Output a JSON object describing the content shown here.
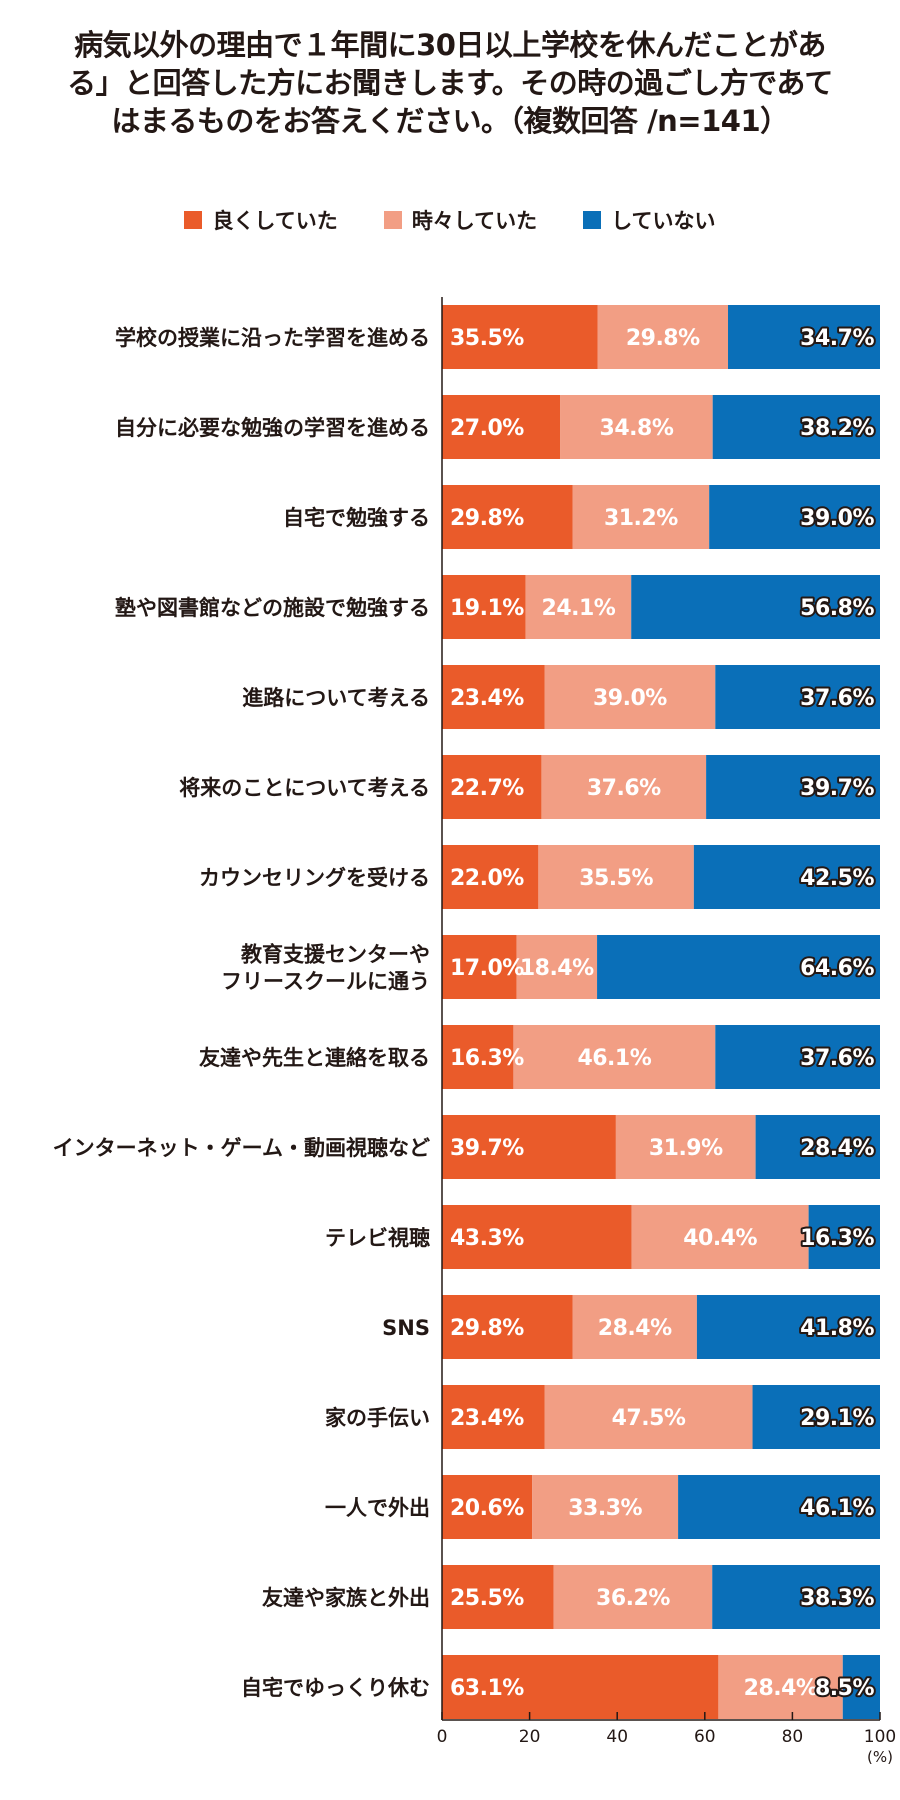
{
  "title": {
    "lines": [
      "病気以外の理由で１年間に30日以上学校を休んだことがあ",
      "る」と回答した方にお聞きします。その時の過ごし方であて",
      "はまるものをお答えください。（複数回答 /n=141）"
    ]
  },
  "legend": [
    {
      "label": "良くしていた",
      "color": "#ea5b2a"
    },
    {
      "label": "時々していた",
      "color": "#f29e84"
    },
    {
      "label": "していない",
      "color": "#0a6fb8"
    }
  ],
  "chart_data": {
    "type": "bar",
    "orientation": "horizontal",
    "stacked": true,
    "categories": [
      [
        "学校の授業に沿った学習を進める"
      ],
      [
        "自分に必要な勉強の学習を進める"
      ],
      [
        "自宅で勉強する"
      ],
      [
        "塾や図書館などの施設で勉強する"
      ],
      [
        "進路について考える"
      ],
      [
        "将来のことについて考える"
      ],
      [
        "カウンセリングを受ける"
      ],
      [
        "教育支援センターや",
        "フリースクールに通う"
      ],
      [
        "友達や先生と連絡を取る"
      ],
      [
        "インターネット・ゲーム・動画視聴など"
      ],
      [
        "テレビ視聴"
      ],
      [
        "SNS"
      ],
      [
        "家の手伝い"
      ],
      [
        "一人で外出"
      ],
      [
        "友達や家族と外出"
      ],
      [
        "自宅でゆっくり休む"
      ]
    ],
    "series": [
      {
        "name": "良くしていた",
        "color": "#ea5b2a",
        "values": [
          35.5,
          27.0,
          29.8,
          19.1,
          23.4,
          22.7,
          22.0,
          17.0,
          16.3,
          39.7,
          43.3,
          29.8,
          23.4,
          20.6,
          25.5,
          63.1
        ]
      },
      {
        "name": "時々していた",
        "color": "#f29e84",
        "values": [
          29.8,
          34.8,
          31.2,
          24.1,
          39.0,
          37.6,
          35.5,
          18.4,
          46.1,
          31.9,
          40.4,
          28.4,
          47.5,
          33.3,
          36.2,
          28.4
        ]
      },
      {
        "name": "していない",
        "color": "#0a6fb8",
        "values": [
          34.7,
          38.2,
          39.0,
          56.8,
          37.6,
          39.7,
          42.5,
          64.6,
          37.6,
          28.4,
          16.3,
          41.8,
          29.1,
          46.1,
          38.3,
          8.5
        ]
      }
    ],
    "value_labels": [
      [
        "35.5%",
        "29.8%",
        "34.7%"
      ],
      [
        "27.0%",
        "34.8%",
        "38.2%"
      ],
      [
        "29.8%",
        "31.2%",
        "39.0%"
      ],
      [
        "19.1%",
        "24.1%",
        "56.8%"
      ],
      [
        "23.4%",
        "39.0%",
        "37.6%"
      ],
      [
        "22.7%",
        "37.6%",
        "39.7%"
      ],
      [
        "22.0%",
        "35.5%",
        "42.5%"
      ],
      [
        "17.0%",
        "18.4%",
        "64.6%"
      ],
      [
        "16.3%",
        "46.1%",
        "37.6%"
      ],
      [
        "39.7%",
        "31.9%",
        "28.4%"
      ],
      [
        "43.3%",
        "40.4%",
        "16.3%"
      ],
      [
        "29.8%",
        "28.4%",
        "41.8%"
      ],
      [
        "23.4%",
        "47.5%",
        "29.1%"
      ],
      [
        "20.6%",
        "33.3%",
        "46.1%"
      ],
      [
        "25.5%",
        "36.2%",
        "38.3%"
      ],
      [
        "63.1%",
        "28.4%",
        "8.5%"
      ]
    ],
    "x_ticks": [
      "0",
      "20",
      "40",
      "60",
      "80",
      "100"
    ],
    "xlim": [
      0,
      100
    ],
    "unit": "(%)",
    "legend_position": "top"
  }
}
